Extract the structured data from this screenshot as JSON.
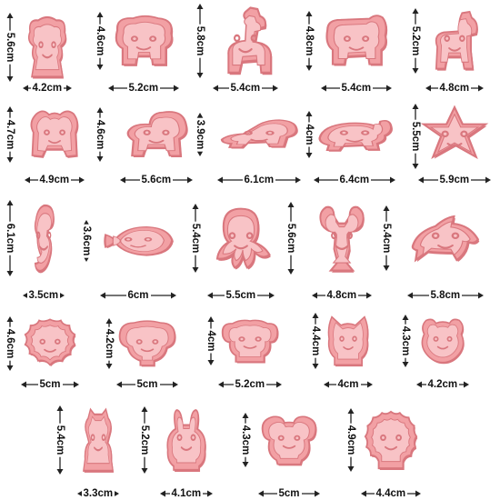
{
  "colors": {
    "pink_fill": "#f2a0a4",
    "pink_light": "#f8c3c6",
    "pink_edge": "#d9777e",
    "line": "#222222"
  },
  "cutters": [
    {
      "name": "monkey",
      "width_label": "4.2cm",
      "height_label": "5.6cm"
    },
    {
      "name": "elephant",
      "width_label": "5.2cm",
      "height_label": "4.6cm"
    },
    {
      "name": "giraffe",
      "width_label": "5.4cm",
      "height_label": "5.8cm"
    },
    {
      "name": "hippo",
      "width_label": "5.4cm",
      "height_label": "4.8cm"
    },
    {
      "name": "zebra",
      "width_label": "4.8cm",
      "height_label": "5.2cm"
    },
    {
      "name": "tiger",
      "width_label": "4.9cm",
      "height_label": "4.7cm"
    },
    {
      "name": "lion",
      "width_label": "5.6cm",
      "height_label": "4.6cm"
    },
    {
      "name": "crocodile",
      "width_label": "6.1cm",
      "height_label": "3.9cm"
    },
    {
      "name": "turtle",
      "width_label": "6.4cm",
      "height_label": "4cm"
    },
    {
      "name": "starfish",
      "width_label": "5.9cm",
      "height_label": "5.5cm"
    },
    {
      "name": "seahorse",
      "width_label": "3.5cm",
      "height_label": "6.1cm"
    },
    {
      "name": "clownfish",
      "width_label": "6cm",
      "height_label": "3.6cm"
    },
    {
      "name": "octopus",
      "width_label": "5.5cm",
      "height_label": "5.4cm"
    },
    {
      "name": "lobster",
      "width_label": "4.8cm",
      "height_label": "5.6cm"
    },
    {
      "name": "dolphin",
      "width_label": "5.8cm",
      "height_label": "5.4cm"
    },
    {
      "name": "lion-face",
      "width_label": "5cm",
      "height_label": "4.6cm"
    },
    {
      "name": "elephant-face",
      "width_label": "5cm",
      "height_label": "4.2cm"
    },
    {
      "name": "puppy-face",
      "width_label": "5.2cm",
      "height_label": "4cm"
    },
    {
      "name": "cat-face",
      "width_label": "4cm",
      "height_label": "4.4cm"
    },
    {
      "name": "tiger-face",
      "width_label": "4.2cm",
      "height_label": "4.3cm"
    },
    {
      "name": "giraffe-sitting",
      "width_label": "3.3cm",
      "height_label": "5.4cm"
    },
    {
      "name": "bunny",
      "width_label": "4.1cm",
      "height_label": "5.2cm"
    },
    {
      "name": "koala-face",
      "width_label": "5cm",
      "height_label": "4.3cm"
    },
    {
      "name": "lion-head",
      "width_label": "4.4cm",
      "height_label": "4.9cm"
    }
  ]
}
